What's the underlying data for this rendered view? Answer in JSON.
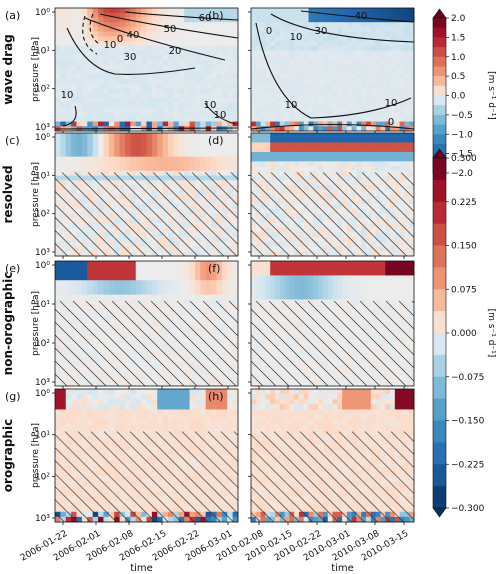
{
  "chart_data": {
    "type": "heatmap",
    "rows": [
      {
        "label": "wave drag",
        "panels": [
          "(a)",
          "(b)"
        ]
      },
      {
        "label": "resolved",
        "panels": [
          "(c)",
          "(d)"
        ]
      },
      {
        "label": "non-orographic",
        "panels": [
          "(e)",
          "(f)"
        ]
      },
      {
        "label": "orographic",
        "panels": [
          "(g)",
          "(h)"
        ]
      }
    ],
    "ylabel": "pressure [hPa]",
    "xlabel": "time",
    "ytick_labels": [
      "10⁰",
      "10¹",
      "10²",
      "10³"
    ],
    "y_scale": "log",
    "y_range_hPa": [
      1000,
      0.7
    ],
    "left_time_ticks": [
      "2006-01-22",
      "2006-02-01",
      "2006-02-08",
      "2006-02-15",
      "2006-02-22",
      "2006-03-01"
    ],
    "right_time_ticks": [
      "2010-02-08",
      "2010-02-15",
      "2010-02-22",
      "2010-03-01",
      "2010-03-08",
      "2010-03-15"
    ],
    "colorbar_top": {
      "unit": "[m s⁻¹ d⁻¹]",
      "ticks": [
        "2.0",
        "1.5",
        "1.0",
        "0.5",
        "0.0",
        "−0.5",
        "−1.0",
        "−1.5",
        "−2.0"
      ],
      "range": [
        -2.0,
        2.0
      ]
    },
    "colorbar_bottom": {
      "unit": "[m s⁻¹ d⁻¹]",
      "ticks": [
        "0.300",
        "0.225",
        "0.150",
        "0.075",
        "0.000",
        "−0.075",
        "−0.150",
        "−0.225",
        "−0.300"
      ],
      "range": [
        -0.3,
        0.3
      ]
    },
    "contour_labels_a": [
      "60",
      "50",
      "40",
      "30",
      "20",
      "10",
      "10",
      "10",
      "10",
      "0"
    ],
    "contour_labels_b": [
      "40",
      "30",
      "10",
      "0",
      "10",
      "10",
      "0"
    ]
  }
}
